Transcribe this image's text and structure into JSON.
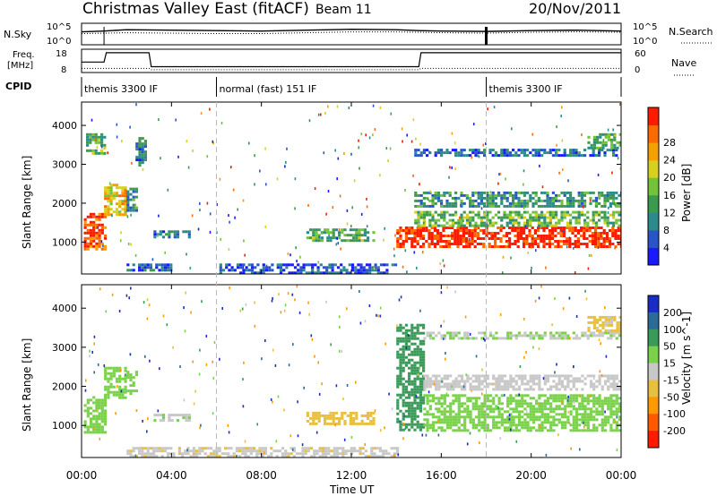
{
  "header": {
    "title": "Christmas Valley East (fitACF)",
    "beam": "Beam 11",
    "date": "20/Nov/2011"
  },
  "panels": {
    "nsky": {
      "label": "N.Sky",
      "ytick_top": "10^5",
      "ytick_bottom": "10^0",
      "right_label": "N.Search",
      "rtick_top": "10^5",
      "rtick_bottom": "10^0"
    },
    "freq": {
      "label_line1": "Freq.",
      "label_line2": "[MHz]",
      "ytick_top": "18",
      "ytick_bottom": "8",
      "right_label": "Nave",
      "rtick_top": "60",
      "rtick_bottom": "0"
    },
    "cpid": {
      "label": "CPID",
      "segments": [
        {
          "start_h": 0.0,
          "end_h": 6.0,
          "text": "themis 3300 IF"
        },
        {
          "start_h": 6.0,
          "end_h": 18.0,
          "text": "normal (fast) 151 IF"
        },
        {
          "start_h": 18.0,
          "end_h": 24.0,
          "text": "themis 3300 IF"
        }
      ]
    }
  },
  "xaxis": {
    "label": "Time UT",
    "ticks": [
      "00:00",
      "04:00",
      "08:00",
      "12:00",
      "16:00",
      "20:00",
      "00:00"
    ],
    "tick_hours": [
      0,
      4,
      8,
      12,
      16,
      20,
      24
    ]
  },
  "power_panel": {
    "ylabel": "Slant Range [km]",
    "yticks": [
      "1000",
      "2000",
      "3000",
      "4000"
    ],
    "colorbar_label": "Power [dB]",
    "colorbar_ticks": [
      "4",
      "8",
      "12",
      "16",
      "20",
      "24",
      "28"
    ],
    "colorbar_colors": [
      "#1a1aff",
      "#2a55c8",
      "#2d8a8a",
      "#3c9a4f",
      "#72c23a",
      "#d6d01e",
      "#f4a000",
      "#ff6a00",
      "#ff1a00"
    ]
  },
  "velocity_panel": {
    "ylabel": "Slant Range [km]",
    "yticks": [
      "1000",
      "2000",
      "3000",
      "4000"
    ],
    "colorbar_label": "Velocity [m s^-1]",
    "colorbar_ticks": [
      "200",
      "100",
      "50",
      "15",
      "-15",
      "-50",
      "-100",
      "-200"
    ],
    "colorbar_colors": [
      "#1a2cc8",
      "#2a6b9a",
      "#3a9a5a",
      "#7ad24a",
      "#c8c8c8",
      "#e8c040",
      "#ff9a00",
      "#ff5a00",
      "#ff1a00"
    ]
  },
  "chart_data": [
    {
      "type": "line",
      "title": "N.Sky / N.Search",
      "x_units": "hours UT",
      "series": [
        {
          "x": [
            0,
            1,
            2,
            4,
            6,
            8,
            10,
            12,
            14,
            15,
            16,
            18,
            20,
            22,
            24
          ],
          "y": [
            3,
            3.2,
            3.5,
            3.4,
            3.3,
            3.2,
            3.4,
            3.6,
            3.5,
            3.3,
            3.2,
            3.1,
            3.3,
            3.4,
            3.2
          ]
        },
        {
          "x": [
            0,
            2,
            4,
            6,
            8,
            10,
            12,
            14,
            16,
            18,
            20,
            22,
            24
          ],
          "y": [
            2.6,
            2.8,
            2.7,
            2.6,
            2.6,
            2.8,
            3.0,
            3.0,
            2.8,
            2.7,
            2.9,
            3.0,
            2.9
          ]
        }
      ]
    },
    {
      "type": "line",
      "title": "Freq / Nave",
      "x_units": "hours UT",
      "ylim": [
        8,
        18
      ],
      "series": [
        {
          "x": [
            0,
            1,
            1.1,
            3,
            3.1,
            15,
            15.1,
            18,
            18.1,
            24
          ],
          "y": [
            12.5,
            12.5,
            16.5,
            16.5,
            10.5,
            10.5,
            16.5,
            16.5,
            16.5,
            16.5
          ]
        },
        {
          "x": [
            0,
            3,
            3.1,
            15,
            15.1,
            24
          ],
          "y": [
            9.8,
            9.8,
            9.2,
            9.2,
            9.8,
            9.8
          ]
        }
      ]
    },
    {
      "type": "heatmap",
      "title": "Power [dB]",
      "xlabel": "Time UT",
      "ylabel": "Slant Range [km]",
      "xlim": [
        0,
        24
      ],
      "ylim": [
        180,
        4600
      ],
      "zlim": [
        0,
        30
      ],
      "bands": [
        {
          "t0": 0.1,
          "t1": 1.0,
          "r0": 800,
          "r1": 1750,
          "z": 26
        },
        {
          "t0": 1.0,
          "t1": 2.0,
          "r0": 1700,
          "r1": 2500,
          "z": 20
        },
        {
          "t0": 2.0,
          "t1": 2.4,
          "r0": 1800,
          "r1": 2400,
          "z": 10
        },
        {
          "t0": 0.2,
          "t1": 1.0,
          "r0": 3300,
          "r1": 3800,
          "z": 12
        },
        {
          "t0": 2.4,
          "t1": 2.8,
          "r0": 3000,
          "r1": 3700,
          "z": 8
        },
        {
          "t0": 3.2,
          "t1": 4.8,
          "r0": 1100,
          "r1": 1300,
          "z": 6
        },
        {
          "t0": 10.0,
          "t1": 13.0,
          "r0": 1050,
          "r1": 1350,
          "z": 12
        },
        {
          "t0": 2.0,
          "t1": 4.0,
          "r0": 300,
          "r1": 450,
          "z": 6
        },
        {
          "t0": 6.0,
          "t1": 14.0,
          "r0": 200,
          "r1": 450,
          "z": 5
        },
        {
          "t0": 14.0,
          "t1": 24.0,
          "r0": 900,
          "r1": 1400,
          "z": 29
        },
        {
          "t0": 14.8,
          "t1": 24.0,
          "r0": 1400,
          "r1": 1800,
          "z": 14
        },
        {
          "t0": 14.8,
          "t1": 24.0,
          "r0": 1900,
          "r1": 2300,
          "z": 10
        },
        {
          "t0": 14.8,
          "t1": 24.0,
          "r0": 3200,
          "r1": 3400,
          "z": 6
        },
        {
          "t0": 22.5,
          "t1": 24.0,
          "r0": 3400,
          "r1": 3800,
          "z": 12
        }
      ]
    },
    {
      "type": "heatmap",
      "title": "Velocity [m s^-1]",
      "xlabel": "Time UT",
      "ylabel": "Slant Range [km]",
      "xlim": [
        0,
        24
      ],
      "ylim": [
        180,
        4600
      ],
      "zlim": [
        -200,
        200
      ],
      "bands": [
        {
          "t0": 0.1,
          "t1": 1.0,
          "r0": 800,
          "r1": 1750,
          "z": 0
        },
        {
          "t0": 1.0,
          "t1": 2.0,
          "r0": 1700,
          "r1": 2500,
          "z": 0
        },
        {
          "t0": 2.0,
          "t1": 2.4,
          "r0": 1800,
          "r1": 2400,
          "z": 0
        },
        {
          "t0": 3.2,
          "t1": 4.8,
          "r0": 1100,
          "r1": 1300,
          "z": -20
        },
        {
          "t0": 10.0,
          "t1": 13.0,
          "r0": 1050,
          "r1": 1350,
          "z": -70
        },
        {
          "t0": 2.0,
          "t1": 14.0,
          "r0": 200,
          "r1": 450,
          "z": -40
        },
        {
          "t0": 14.0,
          "t1": 15.2,
          "r0": 900,
          "r1": 3600,
          "z": 30
        },
        {
          "t0": 15.2,
          "t1": 24.0,
          "r0": 900,
          "r1": 1800,
          "z": 0
        },
        {
          "t0": 15.2,
          "t1": 24.0,
          "r0": 1900,
          "r1": 2300,
          "z": -30
        },
        {
          "t0": 15.2,
          "t1": 24.0,
          "r0": 3200,
          "r1": 3400,
          "z": -20
        },
        {
          "t0": 22.5,
          "t1": 24.0,
          "r0": 3400,
          "r1": 3800,
          "z": -60
        }
      ]
    }
  ]
}
